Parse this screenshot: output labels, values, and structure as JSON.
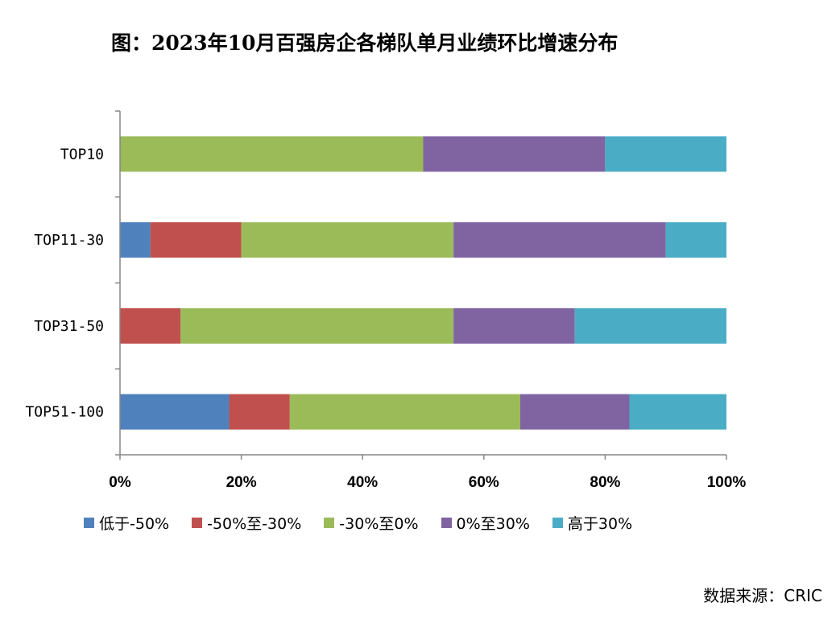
{
  "title": "图：2023年10月百强房企各梯队单月业绩环比增速分布",
  "source": "数据来源：CRIC",
  "chart_data": {
    "type": "bar",
    "orientation": "horizontal",
    "stacked": true,
    "title": "图：2023年10月百强房企各梯队单月业绩环比增速分布",
    "categories": [
      "TOP10",
      "TOP11-30",
      "TOP31-50",
      "TOP51-100"
    ],
    "x_ticks": [
      "0%",
      "20%",
      "40%",
      "60%",
      "80%",
      "100%"
    ],
    "xlim": [
      0,
      100
    ],
    "grid": false,
    "legend_position": "bottom",
    "series": [
      {
        "name": "低于-50%",
        "color": "#4f81bd",
        "values": [
          0,
          5,
          0,
          18
        ]
      },
      {
        "name": "-50%至-30%",
        "color": "#c0504d",
        "values": [
          0,
          15,
          10,
          10
        ]
      },
      {
        "name": "-30%至0%",
        "color": "#9bbb59",
        "values": [
          50,
          35,
          45,
          38
        ]
      },
      {
        "name": "0%至30%",
        "color": "#8064a2",
        "values": [
          30,
          35,
          20,
          18
        ]
      },
      {
        "name": "高于30%",
        "color": "#4bacc6",
        "values": [
          20,
          10,
          25,
          16
        ]
      }
    ]
  }
}
